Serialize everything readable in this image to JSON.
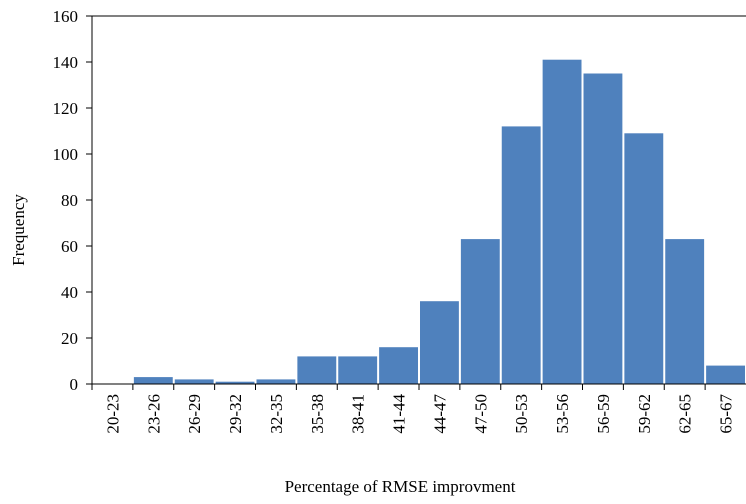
{
  "chart_data": {
    "type": "bar",
    "xlabel": "Percentage of RMSE improvment",
    "ylabel": "Frequency",
    "categories": [
      "20-23",
      "23-26",
      "26-29",
      "29-32",
      "32-35",
      "35-38",
      "38-41",
      "41-44",
      "44-47",
      "47-50",
      "50-53",
      "53-56",
      "56-59",
      "59-62",
      "62-65",
      "65-67"
    ],
    "values": [
      0,
      3,
      2,
      1,
      2,
      12,
      12,
      16,
      36,
      63,
      112,
      141,
      135,
      109,
      63,
      8
    ],
    "color": "#4f81bd",
    "ylim": [
      0,
      160
    ],
    "yticks": [
      0,
      20,
      40,
      60,
      80,
      100,
      120,
      140,
      160
    ],
    "grid": false
  }
}
